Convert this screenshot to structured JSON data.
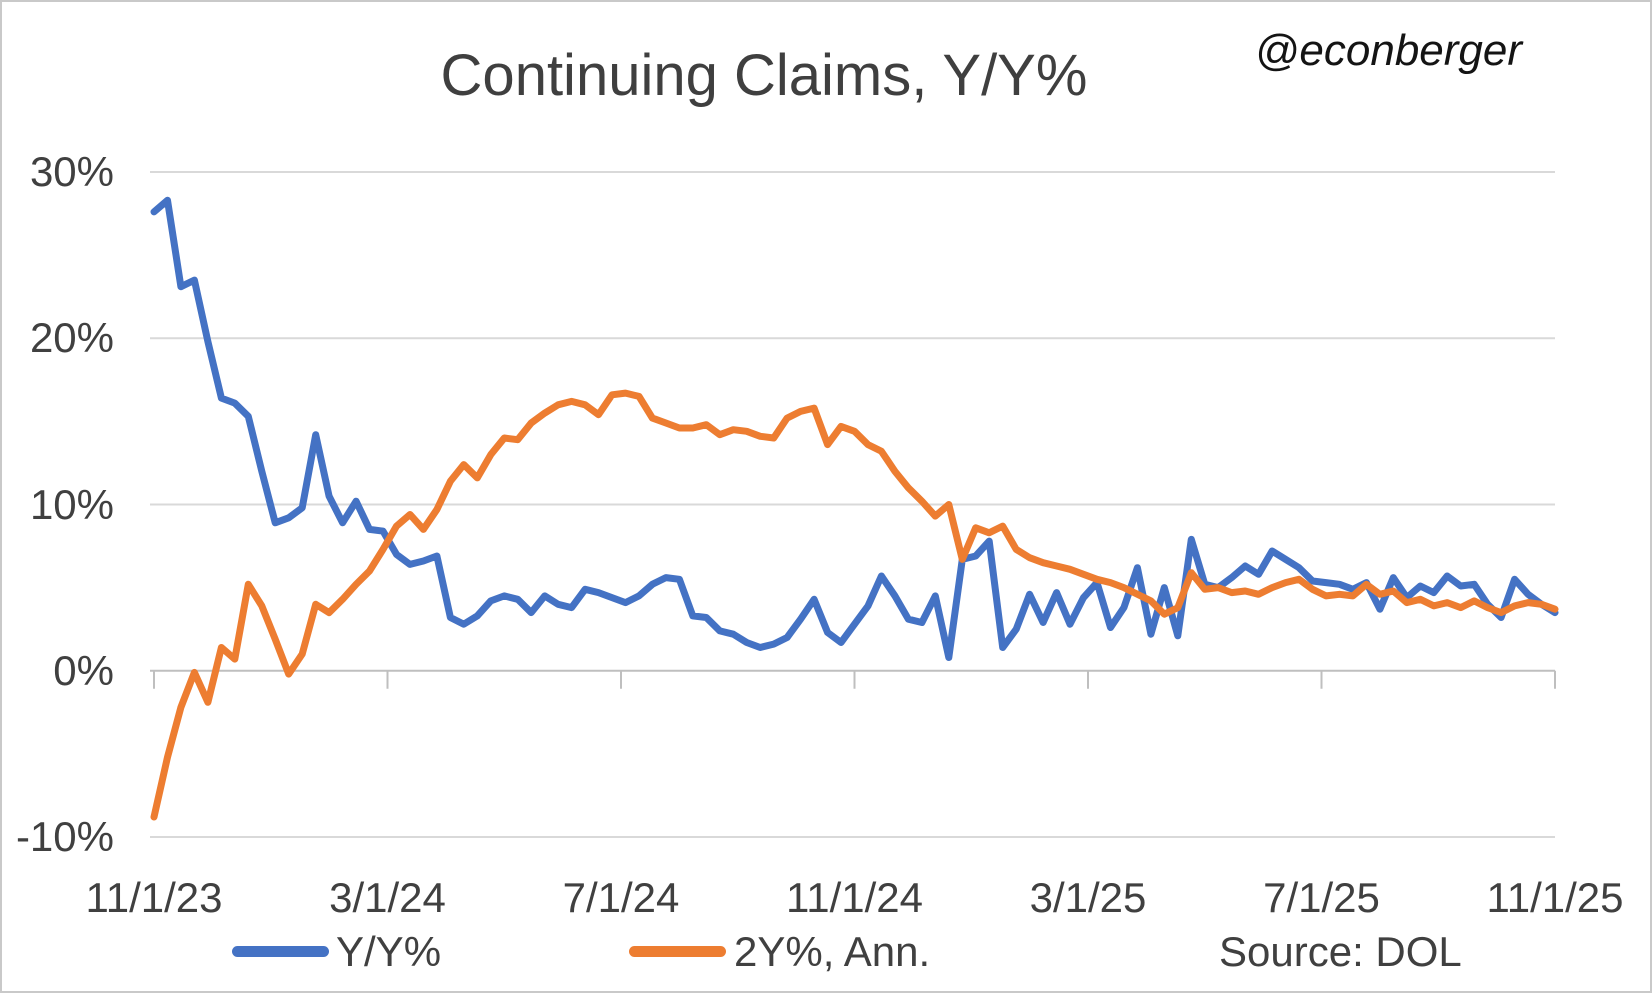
{
  "header": {
    "title": "Continuing Claims, Y/Y%",
    "watermark": "@econberger"
  },
  "source": {
    "label": "Source: DOL"
  },
  "legend": {
    "items": [
      {
        "label": "Y/Y%",
        "color": "#4472C4"
      },
      {
        "label": "2Y%, Ann.",
        "color": "#ED7D31"
      }
    ]
  },
  "colors": {
    "series_yy": "#4472C4",
    "series_2y": "#ED7D31",
    "gridline": "#D9D9D9",
    "axis_line": "#BFBFBF",
    "text": "#404040",
    "title_text": "#3f3f3f",
    "background": "#FFFFFF",
    "frame_border": "#C9C9C9"
  },
  "chart_data": {
    "type": "line",
    "title": "Continuing Claims, Y/Y%",
    "xlabel": "",
    "ylabel": "",
    "x_unit": "weekly observations, 11/1/23 to 11/1/25",
    "ylim": [
      -10,
      30
    ],
    "grid": "horizontal",
    "legend_position": "bottom",
    "y_ticks": [
      30,
      20,
      10,
      0,
      -10
    ],
    "y_tick_labels": [
      "30%",
      "20%",
      "10%",
      "0%",
      "-10%"
    ],
    "x_tick_labels": [
      "11/1/23",
      "3/1/24",
      "7/1/24",
      "11/1/24",
      "3/1/25",
      "7/1/25",
      "11/1/25"
    ],
    "series": [
      {
        "name": "Y/Y%",
        "color": "#4472C4",
        "values": [
          27.6,
          28.3,
          23.1,
          23.5,
          19.8,
          16.4,
          16.1,
          15.3,
          12.0,
          8.9,
          9.2,
          9.8,
          14.2,
          10.5,
          8.9,
          10.2,
          8.5,
          8.4,
          7.0,
          6.4,
          6.6,
          6.9,
          3.2,
          2.8,
          3.3,
          4.2,
          4.5,
          4.3,
          3.5,
          4.5,
          4.0,
          3.8,
          4.9,
          4.7,
          4.4,
          4.1,
          4.5,
          5.2,
          5.6,
          5.5,
          3.3,
          3.2,
          2.4,
          2.2,
          1.7,
          1.4,
          1.6,
          2.0,
          3.1,
          4.3,
          2.3,
          1.7,
          2.8,
          3.9,
          5.7,
          4.5,
          3.1,
          2.9,
          4.5,
          0.8,
          6.7,
          6.9,
          7.8,
          1.4,
          2.5,
          4.6,
          2.9,
          4.7,
          2.8,
          4.4,
          5.3,
          2.6,
          3.8,
          6.2,
          2.2,
          5.0,
          2.1,
          7.9,
          5.2,
          5.0,
          5.6,
          6.3,
          5.8,
          7.2,
          6.7,
          6.2,
          5.4,
          5.3,
          5.2,
          4.9,
          5.3,
          3.7,
          5.6,
          4.4,
          5.1,
          4.7,
          5.7,
          5.1,
          5.2,
          4.0,
          3.2,
          5.5,
          4.6,
          4.0,
          3.5
        ]
      },
      {
        "name": "2Y%, Ann.",
        "color": "#ED7D31",
        "values": [
          -8.8,
          -5.2,
          -2.2,
          -0.1,
          -1.9,
          1.4,
          0.7,
          5.2,
          3.9,
          1.9,
          -0.2,
          1.0,
          4.0,
          3.5,
          4.3,
          5.2,
          6.0,
          7.3,
          8.7,
          9.4,
          8.5,
          9.7,
          11.4,
          12.4,
          11.6,
          13.0,
          14.0,
          13.9,
          14.9,
          15.5,
          16.0,
          16.2,
          16.0,
          15.4,
          16.6,
          16.7,
          16.5,
          15.2,
          14.9,
          14.6,
          14.6,
          14.8,
          14.2,
          14.5,
          14.4,
          14.1,
          14.0,
          15.2,
          15.6,
          15.8,
          13.6,
          14.7,
          14.4,
          13.6,
          13.2,
          12.0,
          11.0,
          10.2,
          9.3,
          10.0,
          6.7,
          8.6,
          8.3,
          8.7,
          7.3,
          6.8,
          6.5,
          6.3,
          6.1,
          5.8,
          5.5,
          5.3,
          5.0,
          4.6,
          4.2,
          3.4,
          3.8,
          5.9,
          4.9,
          5.0,
          4.7,
          4.8,
          4.6,
          5.0,
          5.3,
          5.5,
          4.9,
          4.5,
          4.6,
          4.5,
          5.2,
          4.6,
          4.8,
          4.1,
          4.3,
          3.9,
          4.1,
          3.8,
          4.2,
          3.8,
          3.5,
          3.9,
          4.1,
          4.0,
          3.7
        ]
      }
    ]
  }
}
